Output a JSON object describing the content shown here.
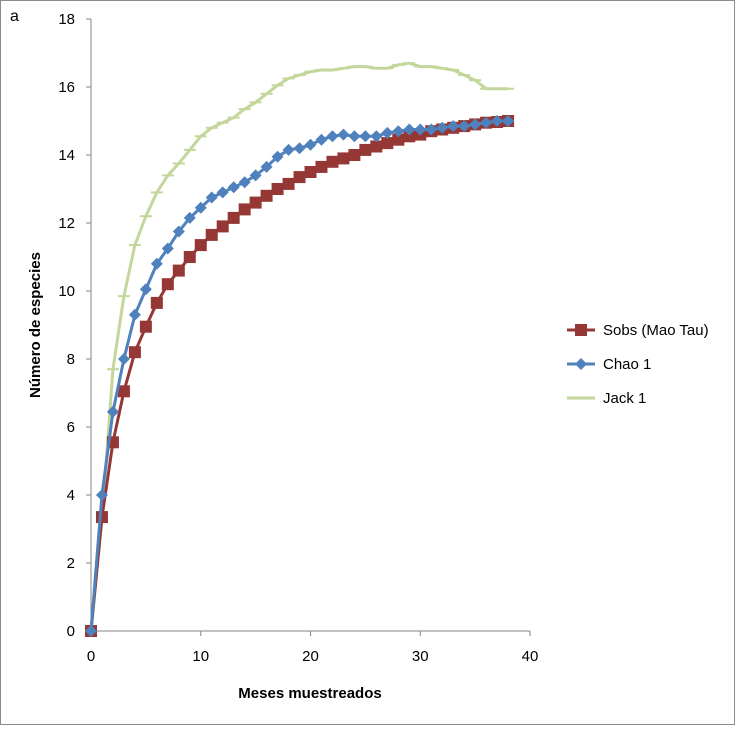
{
  "panel_label": "a",
  "chart_data": {
    "type": "line",
    "xlabel": "Meses muestreados",
    "ylabel": "Número de especies",
    "xlim": [
      0,
      40
    ],
    "ylim": [
      0,
      18
    ],
    "x_ticks": [
      "0",
      "10",
      "20",
      "30",
      "40"
    ],
    "y_ticks": [
      "0",
      "2",
      "4",
      "6",
      "8",
      "10",
      "12",
      "14",
      "16",
      "18"
    ],
    "grid": false,
    "legend_position": "right",
    "x": [
      0,
      1,
      2,
      3,
      4,
      5,
      6,
      7,
      8,
      9,
      10,
      11,
      12,
      13,
      14,
      15,
      16,
      17,
      18,
      19,
      20,
      21,
      22,
      23,
      24,
      25,
      26,
      27,
      28,
      29,
      30,
      31,
      32,
      33,
      34,
      35,
      36,
      37,
      38
    ],
    "series": [
      {
        "name": "Sobs (Mao Tau)",
        "color": "#953735",
        "marker": "square",
        "values": [
          0,
          3.35,
          5.55,
          7.05,
          8.2,
          8.95,
          9.65,
          10.2,
          10.6,
          11.0,
          11.35,
          11.65,
          11.9,
          12.15,
          12.4,
          12.6,
          12.8,
          13.0,
          13.15,
          13.35,
          13.5,
          13.65,
          13.8,
          13.9,
          14.0,
          14.15,
          14.25,
          14.35,
          14.45,
          14.55,
          14.6,
          14.7,
          14.75,
          14.8,
          14.85,
          14.9,
          14.95,
          14.97,
          15.0
        ]
      },
      {
        "name": "Chao 1",
        "color": "#4f81bd",
        "marker": "diamond",
        "values": [
          0,
          4.0,
          6.45,
          8.0,
          9.3,
          10.05,
          10.8,
          11.25,
          11.75,
          12.15,
          12.45,
          12.75,
          12.9,
          13.05,
          13.2,
          13.4,
          13.65,
          13.95,
          14.15,
          14.2,
          14.3,
          14.45,
          14.55,
          14.6,
          14.55,
          14.55,
          14.55,
          14.65,
          14.7,
          14.75,
          14.75,
          14.75,
          14.8,
          14.85,
          14.85,
          14.9,
          14.95,
          15.0,
          15.0
        ]
      },
      {
        "name": "Jack 1",
        "color": "#c3d69b",
        "marker": "dash",
        "values": [
          0,
          3.3,
          7.7,
          9.85,
          11.35,
          12.2,
          12.9,
          13.4,
          13.75,
          14.15,
          14.55,
          14.8,
          14.95,
          15.1,
          15.35,
          15.55,
          15.8,
          16.05,
          16.25,
          16.35,
          16.45,
          16.5,
          16.5,
          16.55,
          16.6,
          16.6,
          16.55,
          16.55,
          16.65,
          16.7,
          16.6,
          16.6,
          16.55,
          16.5,
          16.35,
          16.2,
          15.95,
          15.95,
          15.95
        ]
      }
    ]
  }
}
